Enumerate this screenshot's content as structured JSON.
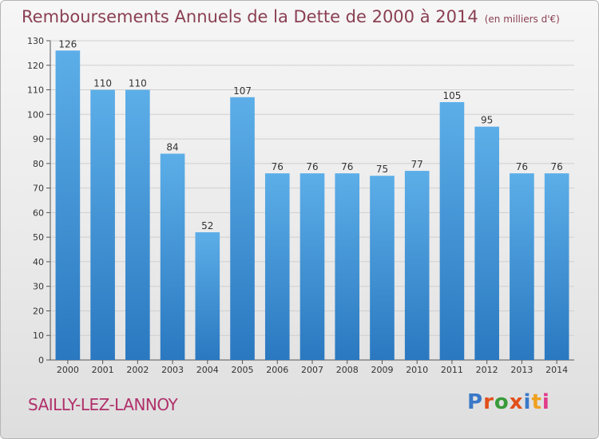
{
  "chart_data": {
    "type": "bar",
    "title": "Remboursements Annuels de la Dette de 2000 à 2014",
    "subtitle": "(en milliers d'€)",
    "categories": [
      "2000",
      "2001",
      "2002",
      "2003",
      "2004",
      "2005",
      "2006",
      "2007",
      "2008",
      "2009",
      "2010",
      "2011",
      "2012",
      "2013",
      "2014"
    ],
    "values": [
      126,
      110,
      110,
      84,
      52,
      107,
      76,
      76,
      76,
      75,
      77,
      105,
      95,
      76,
      76
    ],
    "xlabel": "",
    "ylabel": "",
    "ylim": [
      0,
      130
    ],
    "yticks": [
      0,
      10,
      20,
      30,
      40,
      50,
      60,
      70,
      80,
      90,
      100,
      110,
      120,
      130
    ],
    "grid": true,
    "data_labels": true
  },
  "footer": {
    "commune": "SAILLY-LEZ-LANNOY",
    "brand": "Proxiti"
  },
  "colors": {
    "bar_top": "#5caee8",
    "bar_bottom": "#2a78c0",
    "title": "#8a3f52",
    "commune": "#b0306a",
    "brand_letters": [
      "#3a78c8",
      "#e2501a",
      "#3a9a3a",
      "#e2501a",
      "#3a78c8",
      "#f0a020",
      "#e23a8a"
    ]
  }
}
